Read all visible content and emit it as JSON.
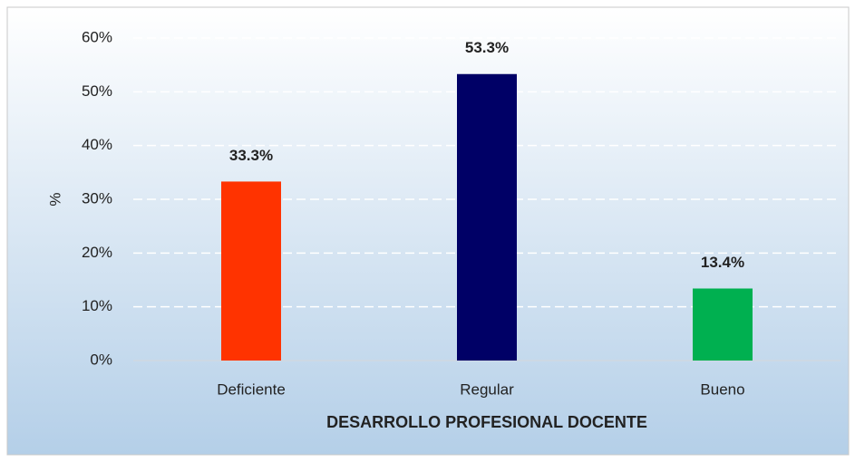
{
  "chart_data": {
    "type": "bar",
    "x_label": "DESARROLLO PROFESIONAL DOCENTE",
    "y_label": "%",
    "categories": [
      "Deficiente",
      "Regular",
      "Bueno"
    ],
    "values": [
      33.3,
      53.3,
      13.4
    ],
    "value_labels": [
      "33.3%",
      "53.3%",
      "13.4%"
    ],
    "colors": [
      "#ff3300",
      "#000066",
      "#00b050"
    ],
    "ylim": [
      0,
      60
    ],
    "yticks": [
      {
        "value": 0,
        "label": "0%"
      },
      {
        "value": 10,
        "label": "10%"
      },
      {
        "value": 20,
        "label": "20%"
      },
      {
        "value": 30,
        "label": "30%"
      },
      {
        "value": 40,
        "label": "40%"
      },
      {
        "value": 50,
        "label": "50%"
      },
      {
        "value": 60,
        "label": "60%"
      }
    ],
    "grid": true
  }
}
